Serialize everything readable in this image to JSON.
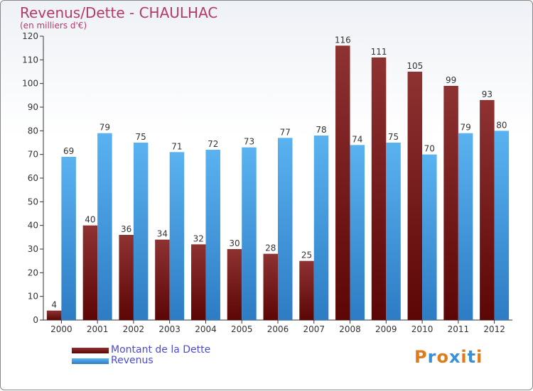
{
  "header": {
    "title": "Revenus/Dette - CHAULHAC",
    "subtitle": "(en milliers d'€)"
  },
  "logo": {
    "text": "Proxiti"
  },
  "chart_data": {
    "type": "bar",
    "title": "Revenus/Dette - CHAULHAC",
    "subtitle": "(en milliers d'€)",
    "categories": [
      "2000",
      "2001",
      "2002",
      "2003",
      "2004",
      "2005",
      "2006",
      "2007",
      "2008",
      "2009",
      "2010",
      "2011",
      "2012"
    ],
    "series": [
      {
        "name": "Montant de la Dette",
        "color": "#7a1c1c",
        "values": [
          4,
          40,
          36,
          34,
          32,
          30,
          28,
          25,
          116,
          111,
          105,
          99,
          93
        ]
      },
      {
        "name": "Revenus",
        "color": "#4aa3e8",
        "values": [
          69,
          79,
          75,
          71,
          72,
          73,
          77,
          78,
          74,
          75,
          70,
          79,
          80
        ]
      }
    ],
    "ylim": [
      0,
      120
    ],
    "yticks": [
      0,
      10,
      20,
      30,
      40,
      50,
      60,
      70,
      80,
      90,
      100,
      110,
      120
    ],
    "grid": false,
    "legend_position": "bottom-left"
  }
}
